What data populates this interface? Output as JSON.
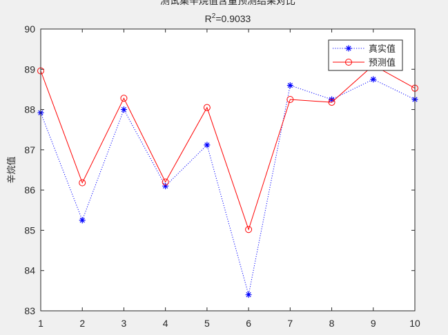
{
  "chart_data": {
    "type": "line",
    "title_line1": "测试集辛烷值含量预测结果对比",
    "title_line2_prefix": "R",
    "title_line2_sup": "2",
    "title_line2_suffix": "=0.9033",
    "xlabel": "",
    "ylabel": "辛烷值",
    "xlim": [
      1,
      10
    ],
    "ylim": [
      83,
      90
    ],
    "x": [
      1,
      2,
      3,
      4,
      5,
      6,
      7,
      8,
      9,
      10
    ],
    "xticks": [
      "1",
      "2",
      "3",
      "4",
      "5",
      "6",
      "7",
      "8",
      "9",
      "10"
    ],
    "yticks": [
      "83",
      "84",
      "85",
      "86",
      "87",
      "88",
      "89",
      "90"
    ],
    "grid": false,
    "legend_position": "top-right",
    "series": [
      {
        "name": "真实值",
        "values": [
          87.92,
          85.25,
          88.0,
          86.1,
          87.12,
          83.4,
          88.6,
          88.25,
          88.75,
          88.25
        ],
        "color": "#0000ff",
        "line_style": "dotted",
        "marker": "asterisk"
      },
      {
        "name": "预测值",
        "values": [
          88.96,
          86.18,
          88.28,
          86.2,
          88.05,
          85.02,
          88.25,
          88.18,
          89.1,
          88.53
        ],
        "color": "#ff0000",
        "line_style": "solid",
        "marker": "circle"
      }
    ]
  }
}
